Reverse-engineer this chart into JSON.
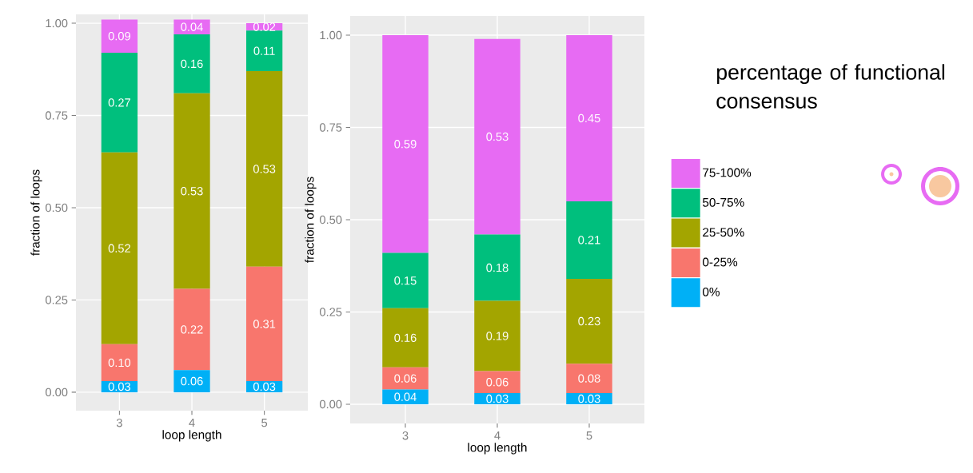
{
  "chart_data": [
    {
      "type": "bar",
      "stacked": true,
      "categories": [
        "3",
        "4",
        "5"
      ],
      "xlabel": "loop length",
      "ylabel": "fraction of loops",
      "ylim": [
        -0.05,
        1.024
      ],
      "yticks": [
        {
          "value": 0,
          "label": "0.00"
        },
        {
          "value": 0.25,
          "label": "0.25"
        },
        {
          "value": 0.5,
          "label": "0.50"
        },
        {
          "value": 0.75,
          "label": "0.75"
        },
        {
          "value": 1,
          "label": "1.00"
        }
      ],
      "grid": true,
      "series": [
        {
          "color": "#00b0f6",
          "values": [
            0.03,
            0.06,
            0.03
          ],
          "value_labels": [
            "0.03",
            "0.06",
            "0.03"
          ]
        },
        {
          "color": "#f8766d",
          "values": [
            0.1,
            0.22,
            0.31
          ],
          "value_labels": [
            "0.10",
            "0.22",
            "0.31"
          ]
        },
        {
          "color": "#a3a500",
          "values": [
            0.52,
            0.53,
            0.53
          ],
          "value_labels": [
            "0.52",
            "0.53",
            "0.53"
          ]
        },
        {
          "color": "#00bf7d",
          "values": [
            0.27,
            0.16,
            0.11
          ],
          "value_labels": [
            "0.27",
            "0.16",
            "0.11"
          ]
        },
        {
          "color": "#e76bf3",
          "values": [
            0.09,
            0.04,
            0.02
          ],
          "value_labels": [
            "0.09",
            "0.04",
            "0.02"
          ]
        }
      ]
    },
    {
      "type": "bar",
      "stacked": true,
      "categories": [
        "3",
        "4",
        "5"
      ],
      "xlabel": "loop length",
      "ylabel": "fraction of loops",
      "ylim": [
        -0.052,
        1.052
      ],
      "yticks": [
        {
          "value": 0,
          "label": "0.00"
        },
        {
          "value": 0.25,
          "label": "0.25"
        },
        {
          "value": 0.5,
          "label": "0.50"
        },
        {
          "value": 0.75,
          "label": "0.75"
        },
        {
          "value": 1,
          "label": "1.00"
        }
      ],
      "grid": true,
      "legend": "right",
      "legend_title": "percentage of functional consensus",
      "series": [
        {
          "name": "0%",
          "color": "#00b0f6",
          "values": [
            0.04,
            0.03,
            0.03
          ],
          "value_labels": [
            "0.04",
            "0.03",
            "0.03"
          ]
        },
        {
          "name": "0-25%",
          "color": "#f8766d",
          "values": [
            0.06,
            0.06,
            0.08
          ],
          "value_labels": [
            "0.06",
            "0.06",
            "0.08"
          ]
        },
        {
          "name": "25-50%",
          "color": "#a3a500",
          "values": [
            0.16,
            0.19,
            0.23
          ],
          "value_labels": [
            "0.16",
            "0.19",
            "0.23"
          ]
        },
        {
          "name": "50-75%",
          "color": "#00bf7d",
          "values": [
            0.15,
            0.18,
            0.21
          ],
          "value_labels": [
            "0.15",
            "0.18",
            "0.21"
          ]
        },
        {
          "name": "75-100%",
          "color": "#e76bf3",
          "values": [
            0.59,
            0.53,
            0.45
          ],
          "value_labels": [
            "0.59",
            "0.53",
            "0.45"
          ]
        }
      ]
    }
  ]
}
